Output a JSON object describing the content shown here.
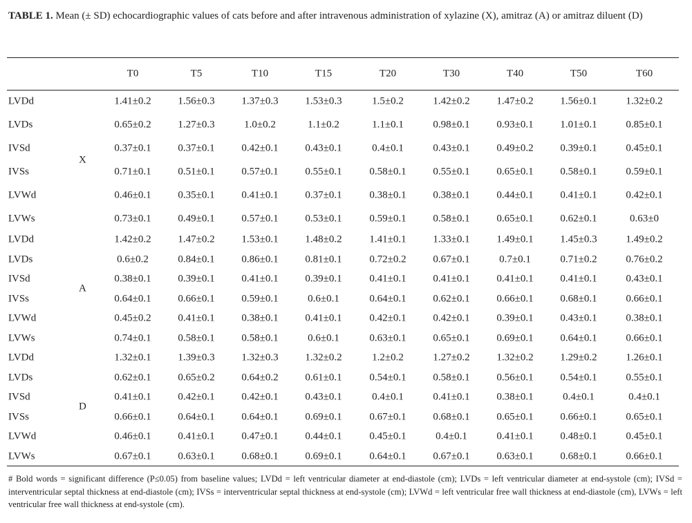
{
  "caption": {
    "label": "TABLE 1.",
    "text": " Mean (± SD) echocardiographic values of cats before and after intravenous administration of xylazine (X), amitraz (A) or amitraz diluent (D)"
  },
  "columns": [
    "T0",
    "T5",
    "T10",
    "T15",
    "T20",
    "T30",
    "T40",
    "T50",
    "T60"
  ],
  "groups": [
    {
      "name": "X",
      "rows": [
        {
          "param": "LVDd",
          "values": [
            "1.41±0.2",
            "1.56±0.3",
            "1.37±0.3",
            "1.53±0.3",
            "1.5±0.2",
            "1.42±0.2",
            "1.47±0.2",
            "1.56±0.1",
            "1.32±0.2"
          ]
        },
        {
          "param": "LVDs",
          "values": [
            "0.65±0.2",
            "1.27±0.3",
            "1.0±0.2",
            "1.1±0.2",
            "1.1±0.1",
            "0.98±0.1",
            "0.93±0.1",
            "1.01±0.1",
            "0.85±0.1"
          ]
        },
        {
          "param": "IVSd",
          "values": [
            "0.37±0.1",
            "0.37±0.1",
            "0.42±0.1",
            "0.43±0.1",
            "0.4±0.1",
            "0.43±0.1",
            "0.49±0.2",
            "0.39±0.1",
            "0.45±0.1"
          ]
        },
        {
          "param": "IVSs",
          "values": [
            "0.71±0.1",
            "0.51±0.1",
            "0.57±0.1",
            "0.55±0.1",
            "0.58±0.1",
            "0.55±0.1",
            "0.65±0.1",
            "0.58±0.1",
            "0.59±0.1"
          ]
        },
        {
          "param": "LVWd",
          "values": [
            "0.46±0.1",
            "0.35±0.1",
            "0.41±0.1",
            "0.37±0.1",
            "0.38±0.1",
            "0.38±0.1",
            "0.44±0.1",
            "0.41±0.1",
            "0.42±0.1"
          ]
        },
        {
          "param": "LVWs",
          "values": [
            "0.73±0.1",
            "0.49±0.1",
            "0.57±0.1",
            "0.53±0.1",
            "0.59±0.1",
            "0.58±0.1",
            "0.65±0.1",
            "0.62±0.1",
            "0.63±0"
          ]
        }
      ]
    },
    {
      "name": "A",
      "rows": [
        {
          "param": "LVDd",
          "values": [
            "1.42±0.2",
            "1.47±0.2",
            "1.53±0.1",
            "1.48±0.2",
            "1.41±0.1",
            "1.33±0.1",
            "1.49±0.1",
            "1.45±0.3",
            "1.49±0.2"
          ]
        },
        {
          "param": "LVDs",
          "values": [
            "0.6±0.2",
            "0.84±0.1",
            "0.86±0.1",
            "0.81±0.1",
            "0.72±0.2",
            "0.67±0.1",
            "0.7±0.1",
            "0.71±0.2",
            "0.76±0.2"
          ]
        },
        {
          "param": "IVSd",
          "values": [
            "0.38±0.1",
            "0.39±0.1",
            "0.41±0.1",
            "0.39±0.1",
            "0.41±0.1",
            "0.41±0.1",
            "0.41±0.1",
            "0.41±0.1",
            "0.43±0.1"
          ]
        },
        {
          "param": "IVSs",
          "values": [
            "0.64±0.1",
            "0.66±0.1",
            "0.59±0.1",
            "0.6±0.1",
            "0.64±0.1",
            "0.62±0.1",
            "0.66±0.1",
            "0.68±0.1",
            "0.66±0.1"
          ]
        },
        {
          "param": "LVWd",
          "values": [
            "0.45±0.2",
            "0.41±0.1",
            "0.38±0.1",
            "0.41±0.1",
            "0.42±0.1",
            "0.42±0.1",
            "0.39±0.1",
            "0.43±0.1",
            "0.38±0.1"
          ]
        },
        {
          "param": "LVWs",
          "values": [
            "0.74±0.1",
            "0.58±0.1",
            "0.58±0.1",
            "0.6±0.1",
            "0.63±0.1",
            "0.65±0.1",
            "0.69±0.1",
            "0.64±0.1",
            "0.66±0.1"
          ]
        }
      ]
    },
    {
      "name": "D",
      "rows": [
        {
          "param": "LVDd",
          "values": [
            "1.32±0.1",
            "1.39±0.3",
            "1.32±0.3",
            "1.32±0.2",
            "1.2±0.2",
            "1.27±0.2",
            "1.32±0.2",
            "1.29±0.2",
            "1.26±0.1"
          ]
        },
        {
          "param": "LVDs",
          "values": [
            "0.62±0.1",
            "0.65±0.2",
            "0.64±0.2",
            "0.61±0.1",
            "0.54±0.1",
            "0.58±0.1",
            "0.56±0.1",
            "0.54±0.1",
            "0.55±0.1"
          ]
        },
        {
          "param": "IVSd",
          "values": [
            "0.41±0.1",
            "0.42±0.1",
            "0.42±0.1",
            "0.43±0.1",
            "0.4±0.1",
            "0.41±0.1",
            "0.38±0.1",
            "0.4±0.1",
            "0.4±0.1"
          ]
        },
        {
          "param": "IVSs",
          "values": [
            "0.66±0.1",
            "0.64±0.1",
            "0.64±0.1",
            "0.69±0.1",
            "0.67±0.1",
            "0.68±0.1",
            "0.65±0.1",
            "0.66±0.1",
            "0.65±0.1"
          ]
        },
        {
          "param": "LVWd",
          "values": [
            "0.46±0.1",
            "0.41±0.1",
            "0.47±0.1",
            "0.44±0.1",
            "0.45±0.1",
            "0.4±0.1",
            "0.41±0.1",
            "0.48±0.1",
            "0.45±0.1"
          ]
        },
        {
          "param": "LVWs",
          "values": [
            "0.67±0.1",
            "0.63±0.1",
            "0.68±0.1",
            "0.69±0.1",
            "0.64±0.1",
            "0.67±0.1",
            "0.63±0.1",
            "0.68±0.1",
            "0.66±0.1"
          ]
        }
      ]
    }
  ],
  "footnote": "# Bold words = significant difference (P≤0.05) from baseline values; LVDd = left ventricular diameter at end-diastole (cm); LVDs = left ventricular diameter at end-systole (cm); IVSd = interventricular septal thickness at end-diastole (cm); IVSs = interventricular septal thickness at end-systole (cm); LVWd = left ventricular free wall thickness at end-diastole (cm), LVWs = left ventricular free wall thickness at end-systole (cm)."
}
